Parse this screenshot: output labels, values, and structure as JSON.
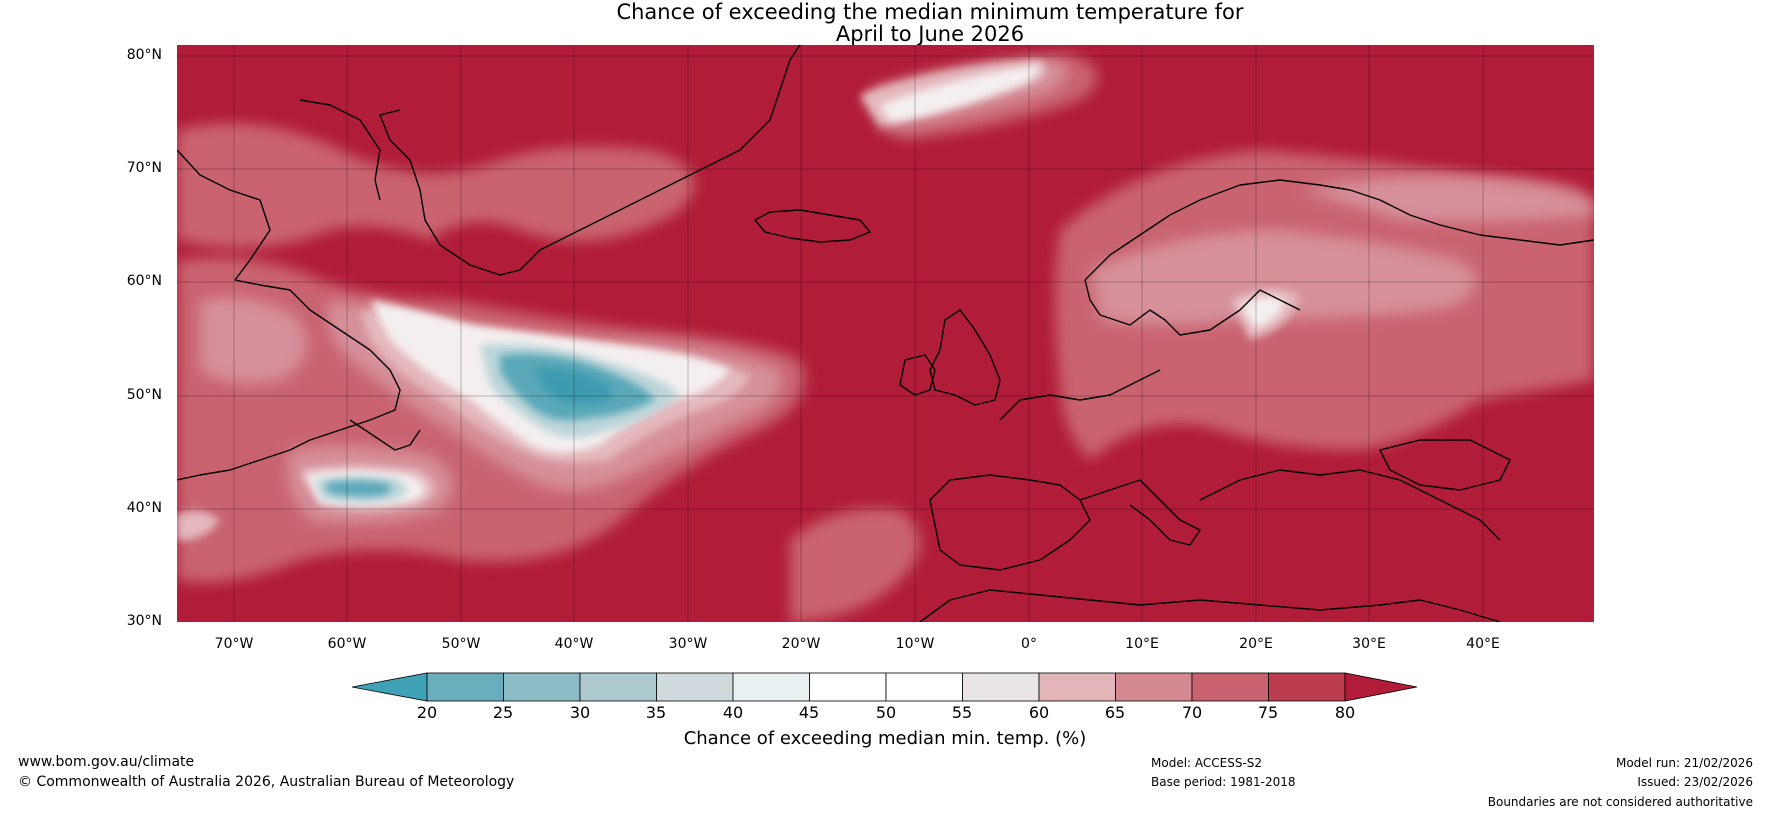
{
  "title_line1": "Chance of exceeding the median minimum temperature for",
  "title_line2": "April to June 2026",
  "lat_labels": [
    "80°N",
    "70°N",
    "60°N",
    "50°N",
    "40°N",
    "30°N"
  ],
  "lon_labels": [
    "70°W",
    "60°W",
    "50°W",
    "40°W",
    "30°W",
    "20°W",
    "10°W",
    "0°",
    "10°E",
    "20°E",
    "30°E",
    "40°E"
  ],
  "colorbar": {
    "ticks": [
      "20",
      "25",
      "30",
      "35",
      "40",
      "45",
      "50",
      "55",
      "60",
      "65",
      "70",
      "75",
      "80"
    ],
    "colors": [
      "#3fa2b6",
      "#6aaebd",
      "#8dbbc6",
      "#adc9cd",
      "#d0dadc",
      "#e8f0f1",
      "#ffffff",
      "#ffffff",
      "#e9e4e5",
      "#e2b5b9",
      "#d48891",
      "#c7626e",
      "#bc3d4d",
      "#b11c38"
    ],
    "title": "Chance of exceeding median min. temp. (%)"
  },
  "footer": {
    "website": "www.bom.gov.au/climate",
    "copyright": "© Commonwealth of Australia 2026, Australian Bureau of Meteorology",
    "model": "Model: ACCESS-S2",
    "base_period": "Base period: 1981-2018",
    "model_run": "Model run: 21/02/2026",
    "issued": "Issued: 23/02/2026",
    "disclaimer": "Boundaries are not considered authoritative"
  }
}
